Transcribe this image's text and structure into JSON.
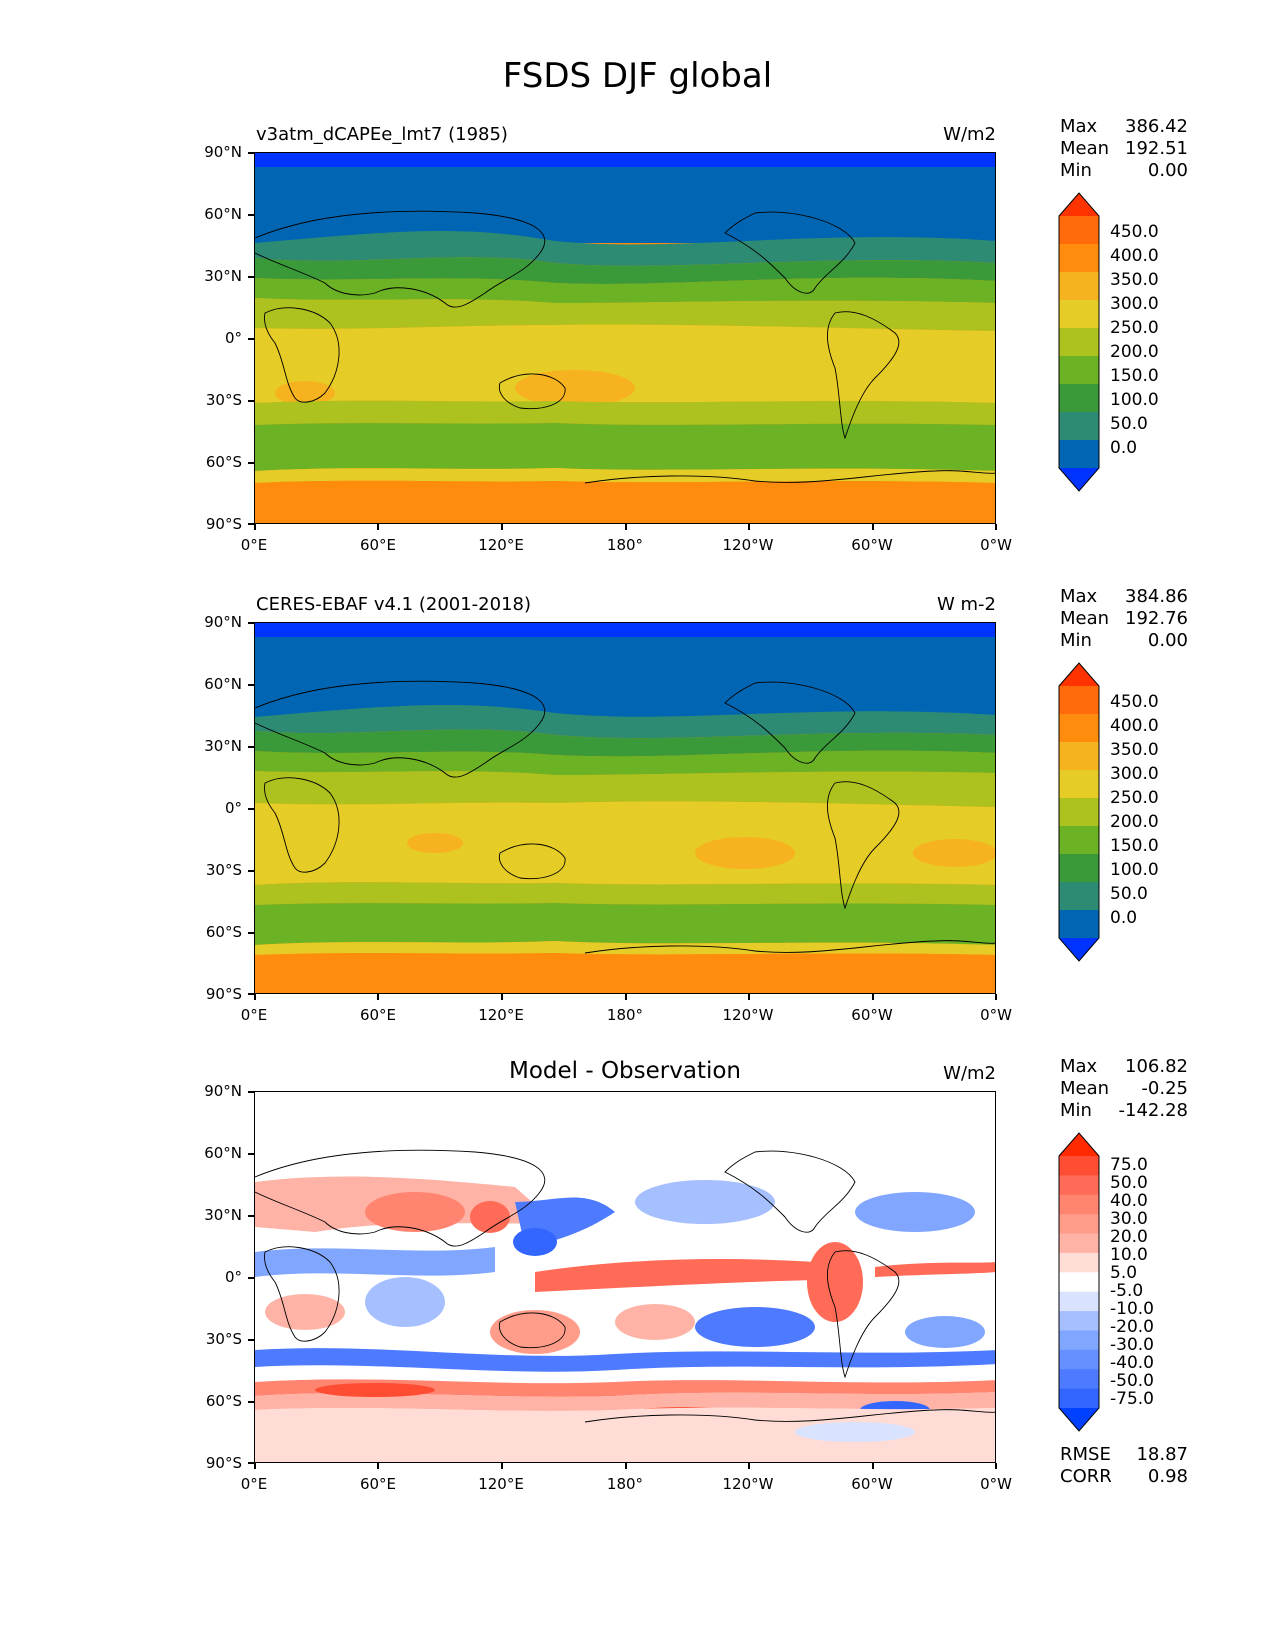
{
  "title": "FSDS DJF global",
  "lat_ticks": [
    "90°N",
    "60°N",
    "30°N",
    "0°",
    "30°S",
    "60°S",
    "90°S"
  ],
  "lon_ticks": [
    "0°E",
    "60°E",
    "120°E",
    "180°",
    "120°W",
    "60°W",
    "0°W"
  ],
  "colors": {
    "abs_levels": [
      "#0033ff",
      "#0066b3",
      "#2e8b73",
      "#3a9a3a",
      "#6bb224",
      "#adc21f",
      "#e6cc26",
      "#f7b21f",
      "#ff8c0d",
      "#ff6b0a",
      "#ff3300"
    ],
    "diff_levels": [
      "#0040ff",
      "#3366ff",
      "#4d7aff",
      "#6690ff",
      "#80a6ff",
      "#a6bfff",
      "#d9e2ff",
      "#ffffff",
      "#ffdcd6",
      "#ffb3a6",
      "#ff9c8a",
      "#ff8570",
      "#ff6b57",
      "#ff4d33",
      "#ff2a00"
    ]
  },
  "panels": {
    "model": {
      "subtitle": "v3atm_dCAPEe_lmt7 (1985)",
      "units": "W/m2",
      "stats": {
        "max_label": "Max",
        "max": "386.42",
        "mean_label": "Mean",
        "mean": "192.51",
        "min_label": "Min",
        "min": "0.00"
      },
      "colorbar_labels": [
        "450.0",
        "400.0",
        "350.0",
        "300.0",
        "250.0",
        "200.0",
        "150.0",
        "100.0",
        "50.0",
        "0.0"
      ]
    },
    "obs": {
      "subtitle": "CERES-EBAF v4.1 (2001-2018)",
      "units": "W m-2",
      "stats": {
        "max_label": "Max",
        "max": "384.86",
        "mean_label": "Mean",
        "mean": "192.76",
        "min_label": "Min",
        "min": "0.00"
      },
      "colorbar_labels": [
        "450.0",
        "400.0",
        "350.0",
        "300.0",
        "250.0",
        "200.0",
        "150.0",
        "100.0",
        "50.0",
        "0.0"
      ]
    },
    "diff": {
      "subtitle": "Model - Observation",
      "units": "W/m2",
      "stats": {
        "max_label": "Max",
        "max": "106.82",
        "mean_label": "Mean",
        "mean": "-0.25",
        "min_label": "Min",
        "min": "-142.28"
      },
      "colorbar_labels": [
        "75.0",
        "50.0",
        "40.0",
        "30.0",
        "20.0",
        "10.0",
        "5.0",
        "-5.0",
        "-10.0",
        "-20.0",
        "-30.0",
        "-40.0",
        "-50.0",
        "-75.0"
      ],
      "rmse_label": "RMSE",
      "rmse": "18.87",
      "corr_label": "CORR",
      "corr": "0.98"
    }
  }
}
